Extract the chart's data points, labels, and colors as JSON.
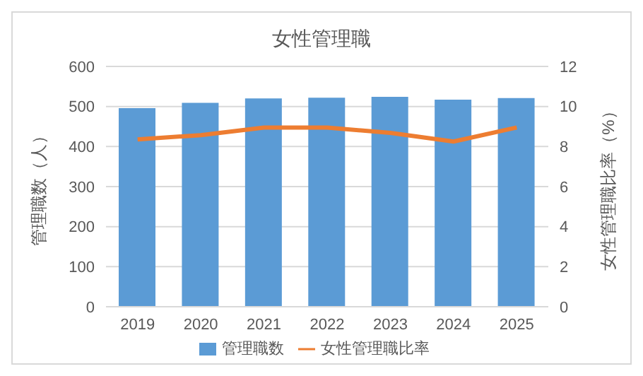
{
  "chart_data": {
    "type": "bar",
    "title": "女性管理職",
    "categories": [
      "2019",
      "2020",
      "2021",
      "2022",
      "2023",
      "2024",
      "2025"
    ],
    "series": [
      {
        "name": "管理職数",
        "color": "#5b9bd5",
        "values": [
          496,
          509,
          520,
          522,
          524,
          517,
          521
        ]
      },
      {
        "name": "女性管理職比率",
        "type": "line",
        "axis": "y2",
        "color": "#ed7d31",
        "values": [
          8.36,
          8.57,
          8.95,
          8.95,
          8.68,
          8.25,
          8.95
        ]
      }
    ],
    "ylabel": "管理職数（人）",
    "y2label": "女性管理職比率（%）",
    "ylim": [
      0,
      600
    ],
    "yticks": [
      0,
      100,
      200,
      300,
      400,
      500,
      600
    ],
    "y2lim": [
      0,
      12
    ],
    "y2ticks": [
      0,
      2,
      4,
      6,
      8,
      10,
      12
    ],
    "grid": "y",
    "legend": "bottom",
    "marker": "none"
  }
}
